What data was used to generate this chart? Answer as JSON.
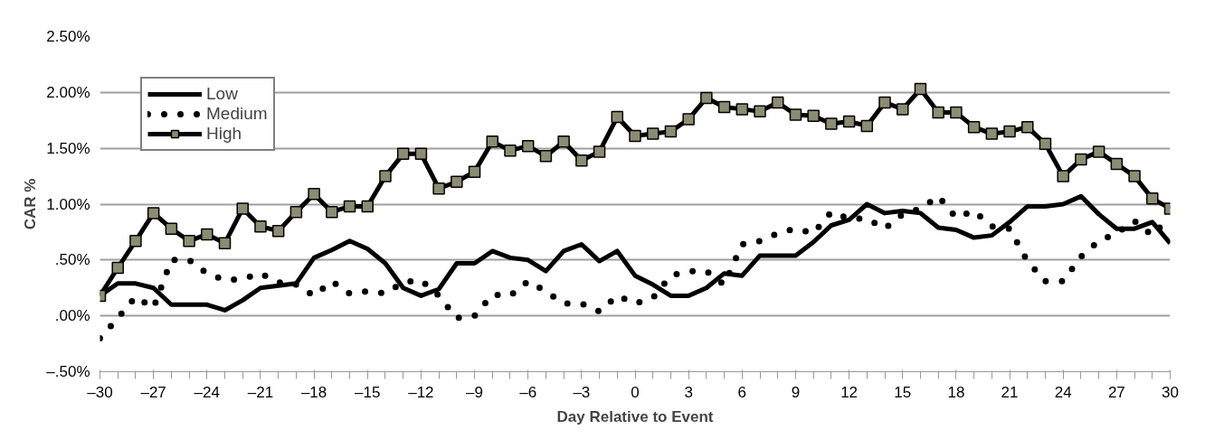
{
  "chart_data": {
    "type": "line",
    "xlabel": "Day Relative to Event",
    "ylabel": "CAR %",
    "x": [
      -30,
      -29,
      -28,
      -27,
      -26,
      -25,
      -24,
      -23,
      -22,
      -21,
      -20,
      -19,
      -18,
      -17,
      -16,
      -15,
      -14,
      -13,
      -12,
      -11,
      -10,
      -9,
      -8,
      -7,
      -6,
      -5,
      -4,
      -3,
      -2,
      -1,
      0,
      1,
      2,
      3,
      4,
      5,
      6,
      7,
      8,
      9,
      10,
      11,
      12,
      13,
      14,
      15,
      16,
      17,
      18,
      19,
      20,
      21,
      22,
      23,
      24,
      25,
      26,
      27,
      28,
      29,
      30
    ],
    "series": [
      {
        "name": "Low",
        "color": "#000000",
        "line_style": "solid",
        "marker": "none",
        "values": [
          0.18,
          0.29,
          0.29,
          0.25,
          0.1,
          0.1,
          0.1,
          0.05,
          0.14,
          0.25,
          0.27,
          0.29,
          0.52,
          0.59,
          0.67,
          0.6,
          0.47,
          0.25,
          0.18,
          0.24,
          0.47,
          0.47,
          0.58,
          0.52,
          0.5,
          0.4,
          0.58,
          0.64,
          0.49,
          0.58,
          0.36,
          0.28,
          0.18,
          0.18,
          0.25,
          0.38,
          0.36,
          0.54,
          0.54,
          0.54,
          0.66,
          0.81,
          0.86,
          1.0,
          0.92,
          0.94,
          0.92,
          0.79,
          0.77,
          0.7,
          0.72,
          0.84,
          0.98,
          0.98,
          1.0,
          1.07,
          0.91,
          0.78,
          0.78,
          0.84,
          0.65
        ]
      },
      {
        "name": "Medium",
        "color": "#000000",
        "line_style": "dotted",
        "marker": "none",
        "values": [
          -0.2,
          -0.02,
          0.17,
          0.07,
          0.5,
          0.5,
          0.38,
          0.32,
          0.33,
          0.38,
          0.3,
          0.28,
          0.18,
          0.31,
          0.2,
          0.22,
          0.2,
          0.3,
          0.32,
          0.18,
          -0.02,
          0.0,
          0.19,
          0.18,
          0.31,
          0.22,
          0.11,
          0.11,
          0.04,
          0.18,
          0.11,
          0.16,
          0.36,
          0.4,
          0.4,
          0.28,
          0.64,
          0.67,
          0.74,
          0.78,
          0.74,
          0.93,
          0.87,
          0.87,
          0.78,
          0.91,
          0.96,
          1.07,
          0.88,
          0.94,
          0.8,
          0.78,
          0.49,
          0.31,
          0.31,
          0.53,
          0.67,
          0.74,
          0.85,
          0.72,
          0.89
        ]
      },
      {
        "name": "High",
        "color": "#000000",
        "line_style": "solid",
        "marker": "square",
        "values": [
          0.18,
          0.43,
          0.67,
          0.92,
          0.78,
          0.67,
          0.73,
          0.65,
          0.96,
          0.8,
          0.76,
          0.93,
          1.09,
          0.93,
          0.98,
          0.98,
          1.25,
          1.45,
          1.45,
          1.14,
          1.2,
          1.29,
          1.56,
          1.48,
          1.52,
          1.43,
          1.56,
          1.39,
          1.47,
          1.78,
          1.61,
          1.63,
          1.65,
          1.76,
          1.95,
          1.87,
          1.85,
          1.83,
          1.91,
          1.8,
          1.79,
          1.72,
          1.74,
          1.7,
          1.91,
          1.85,
          2.03,
          1.82,
          1.82,
          1.69,
          1.63,
          1.65,
          1.69,
          1.54,
          1.25,
          1.4,
          1.47,
          1.36,
          1.25,
          1.05,
          0.96
        ]
      }
    ],
    "xlim": [
      -30,
      30
    ],
    "xticks": [
      {
        "value": -30,
        "label": "–30"
      },
      {
        "value": -27,
        "label": "–27"
      },
      {
        "value": -24,
        "label": "–24"
      },
      {
        "value": -21,
        "label": "–21"
      },
      {
        "value": -18,
        "label": "–18"
      },
      {
        "value": -15,
        "label": "–15"
      },
      {
        "value": -12,
        "label": "–12"
      },
      {
        "value": -9,
        "label": "–9"
      },
      {
        "value": -6,
        "label": "–6"
      },
      {
        "value": -3,
        "label": "–3"
      },
      0,
      3,
      6,
      9,
      12,
      15,
      18,
      21,
      24,
      27,
      30
    ],
    "ylim": [
      -0.5,
      2.5
    ],
    "yticks": [
      {
        "value": -0.5,
        "label": "–.50%"
      },
      {
        "value": 0,
        "label": ".00%"
      },
      {
        "value": 0.5,
        "label": ".50%"
      },
      {
        "value": 1.0,
        "label": "1.00%"
      },
      {
        "value": 1.5,
        "label": "1.50%"
      },
      {
        "value": 2.0,
        "label": "2.00%"
      },
      {
        "value": 2.5,
        "label": "2.50%"
      }
    ],
    "grid": "y",
    "legend": "top left"
  }
}
